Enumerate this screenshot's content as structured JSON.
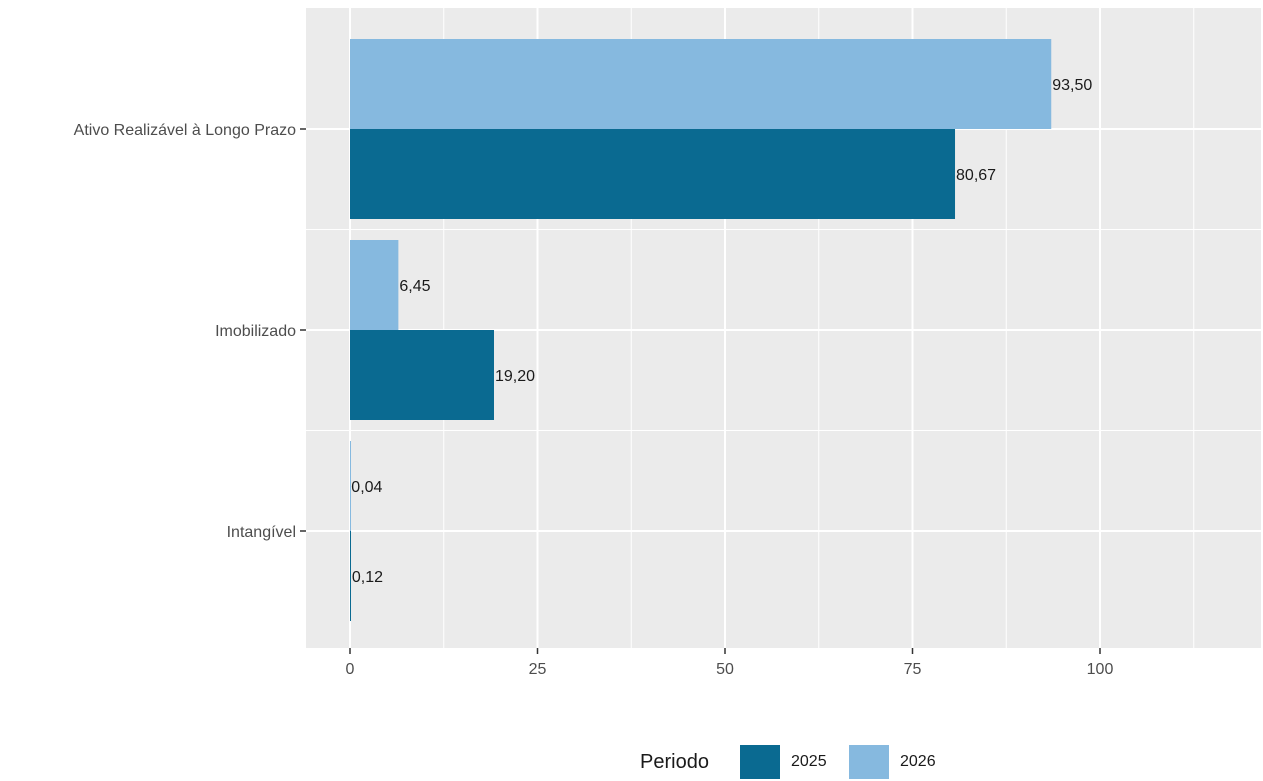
{
  "chart_data": {
    "type": "bar",
    "orientation": "horizontal",
    "categories": [
      "Ativo Realizável à Longo Prazo",
      "Imobilizado",
      "Intangível"
    ],
    "series": [
      {
        "name": "2025",
        "values": [
          80.67,
          19.2,
          0.12
        ],
        "labels": [
          "80,67",
          "19,20",
          "0,12"
        ],
        "color": "#0a6a91"
      },
      {
        "name": "2026",
        "values": [
          93.5,
          6.45,
          0.04
        ],
        "labels": [
          "93,50",
          "6,45",
          "0,04"
        ],
        "color": "#86b9df"
      }
    ],
    "xticks": [
      0,
      25,
      50,
      75,
      100
    ],
    "xtick_labels": [
      "0",
      "25",
      "50",
      "75",
      "100"
    ],
    "xlim": [
      -6,
      121
    ],
    "legend": {
      "title": "Periodo",
      "position": "bottom"
    },
    "grid": true,
    "panel_background": "#ebebeb"
  }
}
